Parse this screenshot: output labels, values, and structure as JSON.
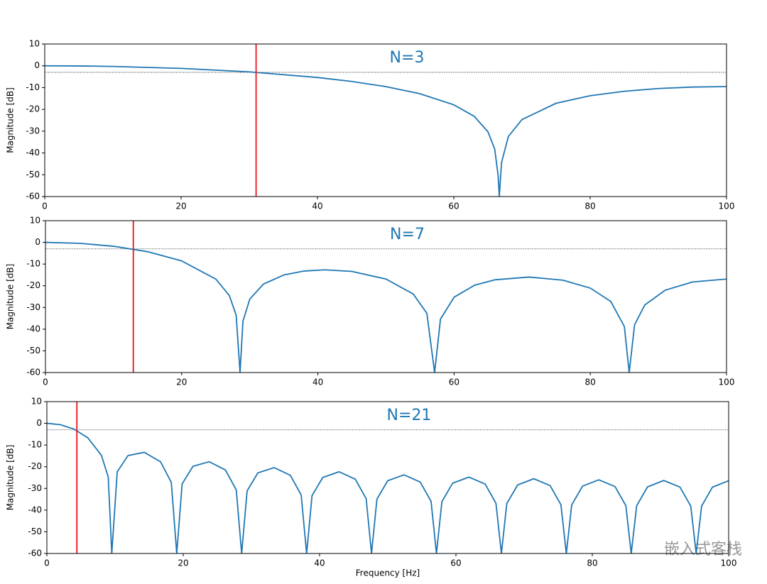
{
  "chart_data": [
    {
      "type": "line",
      "title": "N=3",
      "y_label": "Magnitude [dB]",
      "x": [
        0,
        5,
        10,
        20,
        30,
        40,
        45,
        50,
        55,
        60,
        63,
        65,
        66,
        66.5,
        66.67,
        67,
        68,
        70,
        75,
        80,
        85,
        90,
        95,
        100
      ],
      "series": [
        {
          "color": "#1f77b4",
          "values": [
            0,
            -0.07,
            -0.29,
            -1.18,
            -2.79,
            -5.36,
            -7.18,
            -9.54,
            -12.8,
            -17.9,
            -23.2,
            -30.25,
            -38.22,
            -50.35,
            -60,
            -44.4,
            -32.44,
            -24.65,
            -17.2,
            -13.72,
            -11.68,
            -10.44,
            -9.76,
            -9.54
          ]
        }
      ],
      "vlines": [
        {
          "x": 31.0,
          "color": "#e8141c"
        }
      ],
      "hlines": [
        {
          "y": -3,
          "color": "#000000"
        }
      ],
      "xlim": [
        0,
        100
      ],
      "ylim": [
        -60,
        10
      ],
      "xticks": [
        0,
        20,
        40,
        60,
        80,
        100
      ],
      "yticks": [
        -60,
        -50,
        -40,
        -30,
        -20,
        -10,
        0,
        10
      ]
    },
    {
      "type": "line",
      "title": "N=7",
      "y_label": "Magnitude [dB]",
      "x": [
        0,
        5,
        10,
        15,
        20,
        25,
        27,
        28,
        28.57,
        29,
        30,
        32,
        35,
        38,
        41,
        45,
        50,
        54,
        56,
        57.14,
        58,
        60,
        63,
        66,
        71,
        76,
        80,
        83,
        85,
        85.71,
        86.5,
        88,
        91,
        95,
        100
      ],
      "series": [
        {
          "color": "#1f77b4",
          "values": [
            0,
            -0.43,
            -1.79,
            -4.29,
            -8.54,
            -16.9,
            -24.48,
            -33.53,
            -60,
            -36.31,
            -26.16,
            -19.24,
            -15.01,
            -13.2,
            -12.65,
            -13.4,
            -16.9,
            -23.81,
            -32.68,
            -60,
            -35.38,
            -25.26,
            -19.77,
            -17.25,
            -15.98,
            -17.42,
            -21.08,
            -27.22,
            -38.77,
            -60,
            -37.99,
            -28.83,
            -22.02,
            -18.26,
            -16.9
          ]
        }
      ],
      "vlines": [
        {
          "x": 12.9,
          "color": "#e8141c"
        }
      ],
      "hlines": [
        {
          "y": -3,
          "color": "#000000"
        }
      ],
      "xlim": [
        0,
        100
      ],
      "ylim": [
        -60,
        10
      ],
      "xticks": [
        0,
        20,
        40,
        60,
        80,
        100
      ],
      "yticks": [
        -60,
        -50,
        -40,
        -30,
        -20,
        -10,
        0,
        10
      ]
    },
    {
      "type": "line",
      "title": "N=21",
      "y_label": "Magnitude [dB]",
      "x_label": "Frequency [Hz]",
      "x": [
        0,
        2,
        4,
        6,
        8,
        9,
        9.52,
        10.32,
        11.9,
        14.29,
        16.67,
        18.25,
        19.05,
        19.84,
        21.43,
        23.81,
        26.19,
        27.78,
        28.57,
        29.37,
        30.95,
        33.33,
        35.71,
        37.3,
        38.1,
        38.89,
        40.48,
        42.86,
        45.24,
        46.83,
        47.62,
        48.41,
        50,
        52.38,
        54.76,
        56.35,
        57.14,
        57.94,
        59.52,
        61.9,
        64.29,
        65.87,
        66.67,
        67.46,
        69.05,
        71.43,
        73.81,
        75.4,
        76.19,
        76.98,
        78.57,
        80.95,
        83.33,
        84.92,
        85.71,
        86.51,
        88.1,
        90.48,
        92.86,
        94.44,
        95.24,
        96.03,
        97.62,
        100
      ],
      "series": [
        {
          "color": "#1f77b4",
          "values": [
            0,
            -0.64,
            -2.68,
            -6.66,
            -14.75,
            -24.72,
            -60,
            -22.34,
            -14.84,
            -13.39,
            -17.71,
            -27.21,
            -60,
            -27.92,
            -19.83,
            -17.7,
            -21.49,
            -30.7,
            -60,
            -31.15,
            -22.85,
            -20.42,
            -23.97,
            -33.04,
            -60,
            -33.36,
            -24.93,
            -22.34,
            -25.74,
            -34.72,
            -60,
            -34.95,
            -26.44,
            -23.75,
            -27.05,
            -35.96,
            -60,
            -36.13,
            -27.57,
            -24.79,
            -28.01,
            -36.87,
            -60,
            -37,
            -28.39,
            -25.54,
            -28.7,
            -37.52,
            -60,
            -37.6,
            -28.95,
            -26.05,
            -29.15,
            -37.94,
            -60,
            -37.99,
            -29.3,
            -26.35,
            -29.4,
            -38.15,
            -60,
            -38.17,
            -29.45,
            -26.44
          ]
        }
      ],
      "vlines": [
        {
          "x": 4.4,
          "color": "#e8141c"
        }
      ],
      "hlines": [
        {
          "y": -3,
          "color": "#000000"
        }
      ],
      "xlim": [
        0,
        100
      ],
      "ylim": [
        -60,
        10
      ],
      "xticks": [
        0,
        20,
        40,
        60,
        80,
        100
      ],
      "yticks": [
        -60,
        -50,
        -40,
        -30,
        -20,
        -10,
        0,
        10
      ]
    }
  ],
  "watermark": "嵌入式客栈"
}
